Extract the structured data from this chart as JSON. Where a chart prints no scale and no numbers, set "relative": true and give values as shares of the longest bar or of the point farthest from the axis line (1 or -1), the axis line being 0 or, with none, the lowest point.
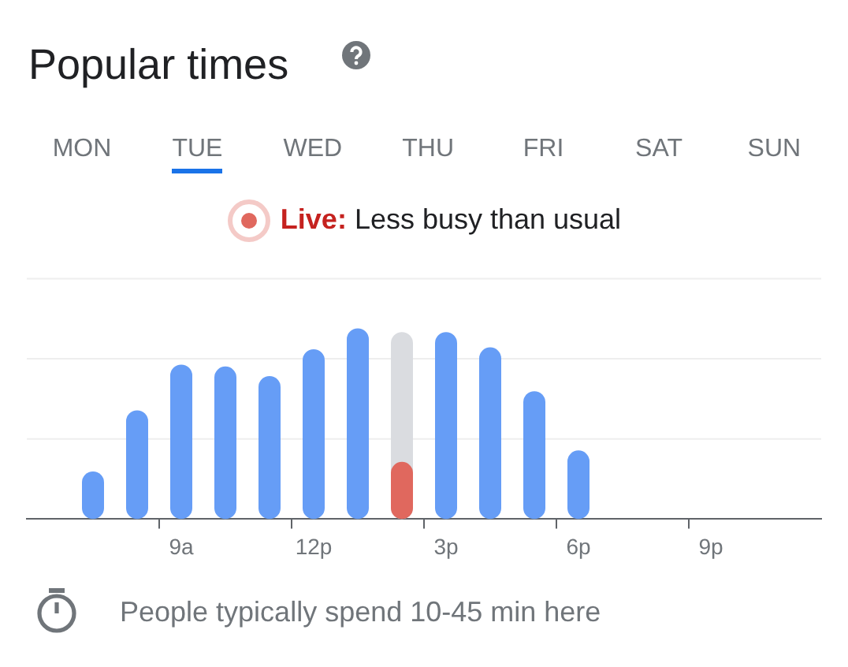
{
  "chart_data": {
    "type": "bar",
    "title": "Popular times",
    "subtitle": "Less busy than usual",
    "categories": [
      null,
      null,
      null,
      "9a",
      null,
      null,
      "12p",
      null,
      null,
      "3p",
      null,
      null,
      "6p",
      null,
      null,
      "9p",
      null,
      null
    ],
    "series": [
      {
        "color": "#669df6",
        "colors": [
          null,
          null,
          null,
          null,
          null,
          null,
          null,
          null,
          "#dadce0",
          null,
          null,
          null,
          null,
          null,
          null,
          null,
          null,
          null
        ],
        "values": [
          null,
          0.25,
          0.57,
          0.81,
          0.8,
          0.75,
          0.89,
          1,
          0.98,
          0.98,
          0.9,
          0.67,
          0.36,
          null,
          null,
          null,
          null,
          null
        ]
      },
      {
        "name": "Live:",
        "color": "#e0685e",
        "values": [
          null,
          null,
          null,
          null,
          null,
          null,
          null,
          null,
          0.3,
          null,
          null,
          null,
          null,
          null,
          null,
          null,
          null,
          null
        ]
      }
    ],
    "relative": true,
    "legend": "top",
    "ref_lines": [
      {
        "axis": "y",
        "value": 0.42,
        "color": "#eeeeee"
      },
      {
        "axis": "y",
        "value": 0.84,
        "color": "#eeeeee"
      },
      {
        "axis": "y",
        "value": 1.26,
        "color": "#eeeeee"
      }
    ],
    "annotations": [
      "MON",
      "TUE",
      "WED",
      "THU",
      "FRI",
      "SAT",
      "SUN",
      "People typically spend 10-45 min here"
    ]
  }
}
